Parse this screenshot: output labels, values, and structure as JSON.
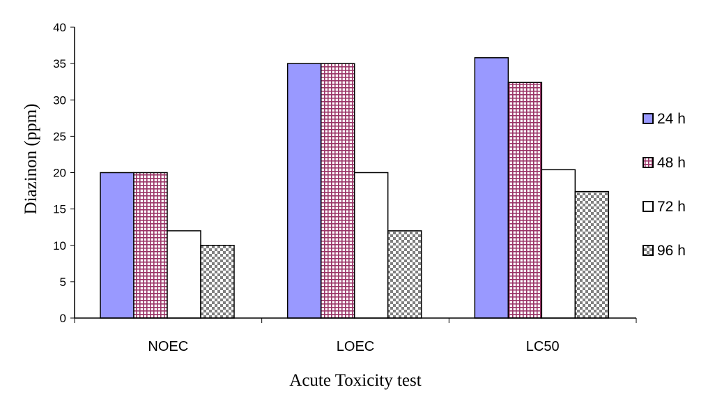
{
  "chart_data": {
    "type": "bar",
    "title": "",
    "xlabel": "Acute Toxicity test",
    "ylabel": "Diazinon (ppm)",
    "ylim": [
      0,
      40
    ],
    "yticks": [
      0,
      5,
      10,
      15,
      20,
      25,
      30,
      35,
      40
    ],
    "categories": [
      "NOEC",
      "LOEC",
      "LC50"
    ],
    "series": [
      {
        "name": "24 h",
        "values": [
          20,
          35,
          35.8
        ],
        "fill": "#9999ff",
        "pattern": "solid"
      },
      {
        "name": "48 h",
        "values": [
          20,
          35,
          32.4
        ],
        "fill": "#993366",
        "pattern": "grid"
      },
      {
        "name": "72 h",
        "values": [
          12,
          20,
          20.4
        ],
        "fill": "#ffffff",
        "pattern": "solid"
      },
      {
        "name": "96 h",
        "values": [
          10,
          12,
          17.4
        ],
        "fill": "#808080",
        "pattern": "checker"
      }
    ],
    "legend_position": "right",
    "grid": false
  }
}
